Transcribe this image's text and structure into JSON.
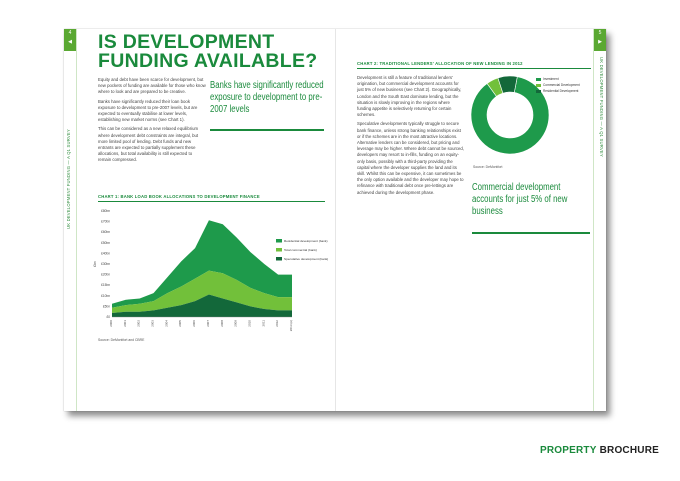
{
  "page": {
    "title_line1": "IS DEVELOPMENT",
    "title_line2": "FUNDING AVAILABLE?",
    "side_label_left": "UK DEVELOPMENT FUNDING — A Q1 SURVEY",
    "side_label_right": "UK DEVELOPMENT FUNDING — A Q1 SURVEY",
    "tab_left_num": "4",
    "tab_right_num": "5",
    "left_paragraphs": [
      "Equity and debt have been scarce for development, but new pockets of funding are available for those who know where to look and are prepared to be creative.",
      "Banks have significantly reduced their loan book exposure to development to pre-2007 levels, but are expected to eventually stabilise at lower levels, establishing new market norms (see Chart 1).",
      "This can be considered as a new relaxed equilibrium where development debt constraints are integral, but more limited pool of lending. Debt funds and new entrants are expected to partially supplement these allocations, but total availability is still expected to remain compressed."
    ],
    "pull_quote_left": "Banks have significantly reduced exposure to development to pre-2007 levels",
    "right_paragraphs": [
      "Development is still a feature of traditional lenders' origination, but commercial development accounts for just 5% of new business (see Chart 2). Geographically, London and the South East dominate lending, but the situation is slowly improving in the regions where funding appetite is selectively returning for certain schemes.",
      "Speculative developments typically struggle to secure bank finance, unless strong banking relationships exist or if the schemes are in the most attractive locations. Alternative lenders can be considered, but pricing and leverage may be higher. Where debt cannot be sourced, developers may resort to in-fills, funding on an equity-only basis, possibly with a third-party providing the capital where the developer supplies the land and its skill. Whilst this can be expensive, it can sometimes be the only option available and the developer may hope to refinance with traditional debt once pre-lettings are achieved during the development phase."
    ],
    "pull_quote_right": "Commercial development accounts for just 5% of new business",
    "brand_part1": "PROPERTY",
    "brand_part2": "BROCHURE"
  },
  "colors": {
    "dark_green": "#13683a",
    "mid_green": "#1e9a4b",
    "light_green": "#72c03a",
    "title_green": "#1a8a3c"
  },
  "chart_data": [
    {
      "type": "area",
      "title": "CHART 1: BANK LOAD BOOK ALLOCATIONS TO DEVELOPMENT FINANCE",
      "ylabel": "£bn",
      "source": "Source: DeMontfort and CBRE",
      "x": [
        "2000",
        "2001",
        "2002",
        "2003",
        "2004",
        "2005",
        "2006",
        "2007",
        "2008",
        "2009",
        "2010",
        "2011",
        "2012",
        "2013 (e)"
      ],
      "ylim": [
        0,
        80
      ],
      "yticks": [
        "£80bn",
        "£70bn",
        "£60bn",
        "£50bn",
        "£40bn",
        "£30bn",
        "£20bn",
        "£15bn",
        "£10bn",
        "£5bn",
        "£0"
      ],
      "legend_placement": "top-right",
      "series": [
        {
          "name": "Speculative development (bank)",
          "values": [
            3,
            4,
            4,
            5,
            7,
            9,
            12,
            17,
            14,
            11,
            8,
            6,
            5,
            5
          ]
        },
        {
          "name": "Total commercial (bank)",
          "values": [
            4,
            5,
            6,
            7,
            11,
            14,
            17,
            18,
            19,
            17,
            14,
            12,
            10,
            10
          ]
        },
        {
          "name": "Residential development (bank)",
          "values": [
            3,
            4,
            4,
            6,
            12,
            19,
            23,
            38,
            37,
            32,
            27,
            22,
            17,
            17
          ]
        }
      ]
    },
    {
      "type": "pie",
      "title": "CHART 2: TRADITIONAL LENDERS' ALLOCATION OF NEW LENDING IN 2012",
      "source": "Source: DeMontfort",
      "legend_placement": "top-right",
      "categories": [
        "Investment",
        "Commercial Development",
        "Residential Development"
      ],
      "values": [
        87,
        5,
        8
      ]
    }
  ]
}
